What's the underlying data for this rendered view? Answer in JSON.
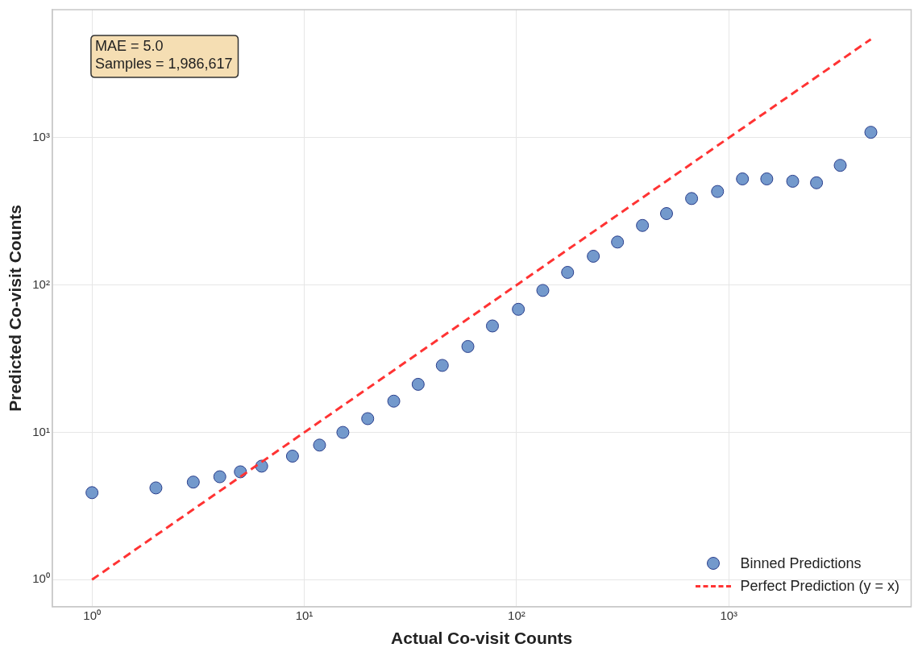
{
  "chart_data": {
    "type": "scatter",
    "xlabel": "Actual Co-visit Counts",
    "ylabel": "Predicted Co-visit Counts",
    "log": "xy",
    "grid": true,
    "legend": "bottom right",
    "xlim": [
      0.65,
      7230
    ],
    "ylim": [
      0.656,
      7410
    ],
    "xticks": [
      {
        "value": 1,
        "label": "10⁰"
      },
      {
        "value": 10,
        "label": "10¹"
      },
      {
        "value": 100,
        "label": "10²"
      },
      {
        "value": 1000,
        "label": "10³"
      }
    ],
    "yticks": [
      {
        "value": 1,
        "label": "10⁰"
      },
      {
        "value": 10,
        "label": "10¹"
      },
      {
        "value": 100,
        "label": "10²"
      },
      {
        "value": 1000,
        "label": "10³"
      }
    ],
    "annotations": [
      "MAE = 5.0",
      "Samples = 1,986,617"
    ],
    "series": [
      {
        "name": "Binned Predictions",
        "marker": "circle",
        "color": "#7399cc",
        "x": [
          1,
          2,
          3,
          4,
          5,
          6.3,
          8.8,
          11.8,
          15.2,
          19.9,
          26.4,
          34.4,
          44.7,
          59,
          77,
          102,
          133,
          174,
          230,
          299,
          392,
          509,
          668,
          885,
          1160,
          1510,
          2000,
          2590,
          3350,
          4670
        ],
        "values": [
          3.9,
          4.2,
          4.6,
          5.0,
          5.4,
          5.9,
          6.9,
          8.2,
          10,
          12.4,
          16.3,
          21.2,
          28.5,
          38.3,
          52.8,
          68.5,
          92,
          122,
          157,
          196,
          254,
          306,
          387,
          432,
          526,
          526,
          507,
          495,
          650,
          1090
        ]
      },
      {
        "name": "Perfect Prediction (y = x)",
        "type": "line",
        "marker": "none",
        "line_style": "dashed",
        "color": "#ff3333",
        "x": [
          1,
          4670
        ],
        "values": [
          1,
          4670
        ]
      }
    ]
  }
}
